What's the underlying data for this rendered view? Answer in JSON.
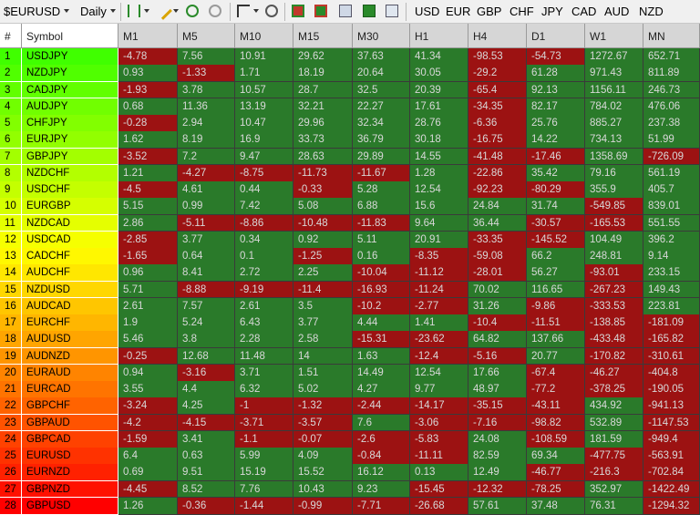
{
  "toolbar": {
    "symbol": "$EURUSD",
    "timeframe": "Daily",
    "currencies": [
      "USD",
      "EUR",
      "GBP",
      "CHF",
      "JPY",
      "CAD",
      "AUD",
      "NZD"
    ]
  },
  "table": {
    "headers": [
      "#",
      "Symbol",
      "M1",
      "M5",
      "M10",
      "M15",
      "M30",
      "H1",
      "H4",
      "D1",
      "W1",
      "MN"
    ],
    "rows": [
      {
        "num": 1,
        "symbol": "USDJPY",
        "values": [
          -4.78,
          7.56,
          10.91,
          29.62,
          37.63,
          41.34,
          -98.53,
          -54.73,
          1272.67,
          652.71
        ]
      },
      {
        "num": 2,
        "symbol": "NZDJPY",
        "values": [
          0.93,
          -1.33,
          1.71,
          18.19,
          20.64,
          30.05,
          -29.2,
          61.28,
          971.43,
          811.89
        ]
      },
      {
        "num": 3,
        "symbol": "CADJPY",
        "values": [
          -1.93,
          3.78,
          10.57,
          28.7,
          32.5,
          20.39,
          -65.4,
          92.13,
          1156.11,
          246.73
        ]
      },
      {
        "num": 4,
        "symbol": "AUDJPY",
        "values": [
          0.68,
          11.36,
          13.19,
          32.21,
          22.27,
          17.61,
          -34.35,
          82.17,
          784.02,
          476.06
        ]
      },
      {
        "num": 5,
        "symbol": "CHFJPY",
        "values": [
          -0.28,
          2.94,
          10.47,
          29.96,
          32.34,
          28.76,
          -6.36,
          25.76,
          885.27,
          237.38
        ]
      },
      {
        "num": 6,
        "symbol": "EURJPY",
        "values": [
          1.62,
          8.19,
          16.9,
          33.73,
          36.79,
          30.18,
          -16.75,
          14.22,
          734.13,
          51.99
        ]
      },
      {
        "num": 7,
        "symbol": "GBPJPY",
        "values": [
          -3.52,
          7.2,
          9.47,
          28.63,
          29.89,
          14.55,
          -41.48,
          -17.46,
          1358.69,
          -726.09
        ]
      },
      {
        "num": 8,
        "symbol": "NZDCHF",
        "values": [
          1.21,
          -4.27,
          -8.75,
          -11.73,
          -11.67,
          1.28,
          -22.86,
          35.42,
          79.16,
          561.19
        ]
      },
      {
        "num": 9,
        "symbol": "USDCHF",
        "values": [
          -4.5,
          4.61,
          0.44,
          -0.33,
          5.28,
          12.54,
          -92.23,
          -80.29,
          355.9,
          405.7
        ]
      },
      {
        "num": 10,
        "symbol": "EURGBP",
        "values": [
          5.15,
          0.99,
          7.42,
          5.08,
          6.88,
          15.6,
          24.84,
          31.74,
          -549.85,
          839.01
        ]
      },
      {
        "num": 11,
        "symbol": "NZDCAD",
        "values": [
          2.86,
          -5.11,
          -8.86,
          -10.48,
          -11.83,
          9.64,
          36.44,
          -30.57,
          -165.53,
          551.55
        ]
      },
      {
        "num": 12,
        "symbol": "USDCAD",
        "values": [
          -2.85,
          3.77,
          0.34,
          0.92,
          5.11,
          20.91,
          -33.35,
          -145.52,
          104.49,
          396.2
        ]
      },
      {
        "num": 13,
        "symbol": "CADCHF",
        "values": [
          -1.65,
          0.64,
          0.1,
          -1.25,
          0.16,
          -8.35,
          -59.08,
          66.2,
          248.81,
          9.14
        ]
      },
      {
        "num": 14,
        "symbol": "AUDCHF",
        "values": [
          0.96,
          8.41,
          2.72,
          2.25,
          -10.04,
          -11.12,
          -28.01,
          56.27,
          -93.01,
          233.15
        ]
      },
      {
        "num": 15,
        "symbol": "NZDUSD",
        "values": [
          5.71,
          -8.88,
          -9.19,
          -11.4,
          -16.93,
          -11.24,
          70.02,
          116.65,
          -267.23,
          149.43
        ]
      },
      {
        "num": 16,
        "symbol": "AUDCAD",
        "values": [
          2.61,
          7.57,
          2.61,
          3.5,
          -10.2,
          -2.77,
          31.26,
          -9.86,
          -333.53,
          223.81
        ]
      },
      {
        "num": 17,
        "symbol": "EURCHF",
        "values": [
          1.9,
          5.24,
          6.43,
          3.77,
          4.44,
          1.41,
          -10.4,
          -11.51,
          -138.85,
          -181.09
        ]
      },
      {
        "num": 18,
        "symbol": "AUDUSD",
        "values": [
          5.46,
          3.8,
          2.28,
          2.58,
          -15.31,
          -23.62,
          64.82,
          137.66,
          -433.48,
          -165.82
        ]
      },
      {
        "num": 19,
        "symbol": "AUDNZD",
        "values": [
          -0.25,
          12.68,
          11.48,
          14,
          1.63,
          -12.4,
          -5.16,
          20.77,
          -170.82,
          -310.61
        ]
      },
      {
        "num": 20,
        "symbol": "EURAUD",
        "values": [
          0.94,
          -3.16,
          3.71,
          1.51,
          14.49,
          12.54,
          17.66,
          -67.4,
          -46.27,
          -404.8
        ]
      },
      {
        "num": 21,
        "symbol": "EURCAD",
        "values": [
          3.55,
          4.4,
          6.32,
          5.02,
          4.27,
          9.77,
          48.97,
          -77.2,
          -378.25,
          -190.05
        ]
      },
      {
        "num": 22,
        "symbol": "GBPCHF",
        "values": [
          -3.24,
          4.25,
          -1,
          -1.32,
          -2.44,
          -14.17,
          -35.15,
          -43.11,
          434.92,
          -941.13
        ]
      },
      {
        "num": 23,
        "symbol": "GBPAUD",
        "values": [
          -4.2,
          -4.15,
          -3.71,
          -3.57,
          7.6,
          -3.06,
          -7.16,
          -98.82,
          532.89,
          -1147.53
        ]
      },
      {
        "num": 24,
        "symbol": "GBPCAD",
        "values": [
          -1.59,
          3.41,
          -1.1,
          -0.07,
          -2.6,
          -5.83,
          24.08,
          -108.59,
          181.59,
          -949.4
        ]
      },
      {
        "num": 25,
        "symbol": "EURUSD",
        "values": [
          6.4,
          0.63,
          5.99,
          4.09,
          -0.84,
          -11.11,
          82.59,
          69.34,
          -477.75,
          -563.91
        ]
      },
      {
        "num": 26,
        "symbol": "EURNZD",
        "values": [
          0.69,
          9.51,
          15.19,
          15.52,
          16.12,
          0.13,
          12.49,
          -46.77,
          -216.3,
          -702.84
        ]
      },
      {
        "num": 27,
        "symbol": "GBPNZD",
        "values": [
          -4.45,
          8.52,
          7.76,
          10.43,
          9.23,
          -15.45,
          -12.32,
          -78.25,
          352.97,
          -1422.49
        ]
      },
      {
        "num": 28,
        "symbol": "GBPUSD",
        "values": [
          1.26,
          -0.36,
          -1.44,
          -0.99,
          -7.71,
          -26.68,
          57.61,
          37.48,
          76.31,
          -1294.32
        ]
      }
    ]
  }
}
